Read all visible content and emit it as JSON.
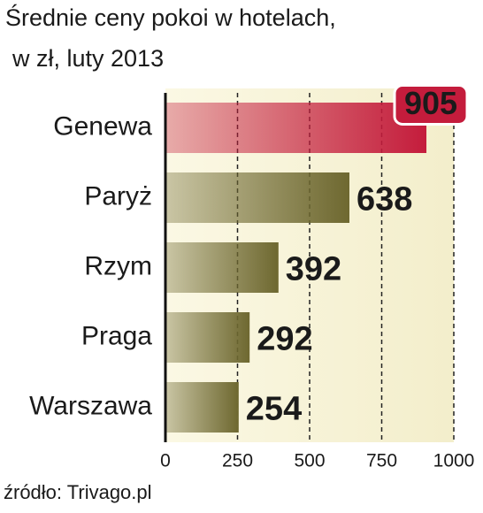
{
  "chart_data": {
    "type": "hbar",
    "title": "Średnie ceny pokoi w hotelach,",
    "subtitle": "w zł, luty 2013",
    "categories": [
      "Genewa",
      "Paryż",
      "Rzym",
      "Praga",
      "Warszawa"
    ],
    "values": [
      905,
      638,
      392,
      292,
      254
    ],
    "colors": [
      "#c41c3c",
      "#6e6830",
      "#6e6830",
      "#6e6830",
      "#6e6830"
    ],
    "highlight_index": 0,
    "xlim": [
      0,
      1000
    ],
    "xticks": [
      0,
      250,
      500,
      750,
      1000
    ],
    "grid": true,
    "source": "źródło: Trivago.pl"
  }
}
